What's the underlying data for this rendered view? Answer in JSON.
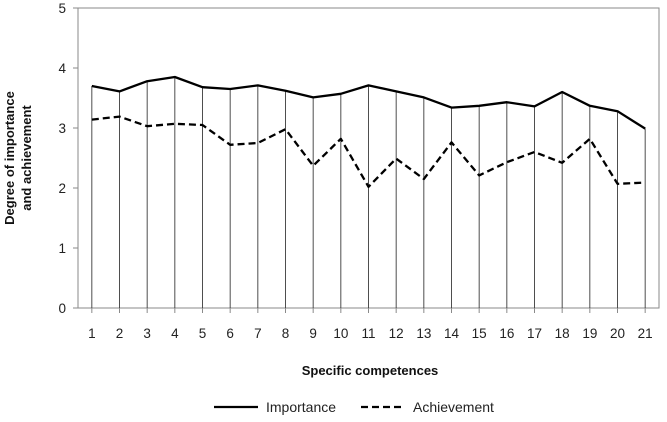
{
  "chart_data": {
    "type": "line",
    "xlabel": "Specific competences",
    "ylabel_lines": [
      "Degree of importance",
      "and  achievement"
    ],
    "ylim": [
      0,
      5
    ],
    "yticks": [
      "0",
      "1",
      "2",
      "3",
      "4",
      "5"
    ],
    "categories": [
      "1",
      "2",
      "3",
      "4",
      "5",
      "6",
      "7",
      "8",
      "9",
      "10",
      "11",
      "12",
      "13",
      "14",
      "15",
      "16",
      "17",
      "18",
      "19",
      "20",
      "21"
    ],
    "series": [
      {
        "name": "Importance",
        "style": "solid",
        "color": "#000000",
        "values": [
          3.7,
          3.61,
          3.78,
          3.85,
          3.68,
          3.65,
          3.71,
          3.62,
          3.51,
          3.57,
          3.71,
          3.61,
          3.51,
          3.34,
          3.37,
          3.43,
          3.36,
          3.6,
          3.37,
          3.28,
          2.99
        ]
      },
      {
        "name": "Achievement",
        "style": "dashed",
        "color": "#000000",
        "values": [
          3.14,
          3.19,
          3.03,
          3.07,
          3.05,
          2.72,
          2.75,
          2.98,
          2.37,
          2.82,
          2.02,
          2.49,
          2.15,
          2.76,
          2.21,
          2.43,
          2.6,
          2.42,
          2.82,
          2.07,
          2.09
        ]
      }
    ],
    "drop_lines": true,
    "grid": false,
    "legend_position": "bottom"
  }
}
